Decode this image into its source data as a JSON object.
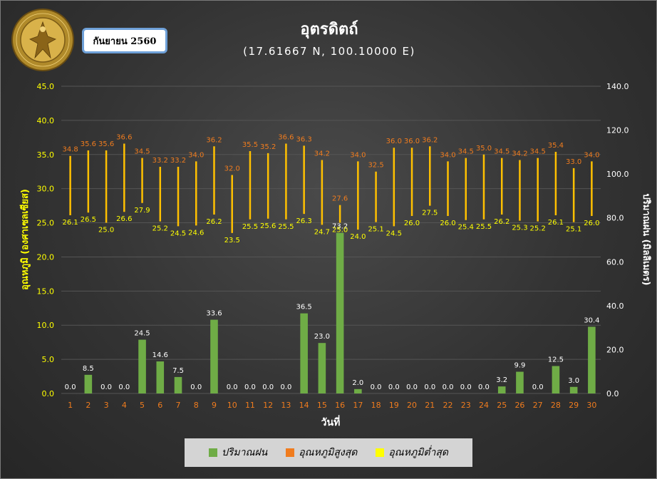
{
  "header": {
    "title": "อุตรดิตถ์",
    "subtitle": "(17.61667 N, 100.10000 E)",
    "month": "กันยายน 2560",
    "logo_text": "กรมอุตุนิยมวิทยา METEOROLOGICAL DEPARTMENT"
  },
  "colors": {
    "rain": "#6fac46",
    "tmax": "#f07c1e",
    "tmin": "#ffff00",
    "range_line": "#ffc000",
    "left_axis": "#ffff00",
    "right_axis": "#ffffff",
    "x_ticks": "#f07c1e",
    "grid": "#555555"
  },
  "chart_data": {
    "type": "bar",
    "x": [
      1,
      2,
      3,
      4,
      5,
      6,
      7,
      8,
      9,
      10,
      11,
      12,
      13,
      14,
      15,
      16,
      17,
      18,
      19,
      20,
      21,
      22,
      23,
      24,
      25,
      26,
      27,
      28,
      29,
      30
    ],
    "xlabel": "วันที่",
    "ylabel_left": "อุณหภูมิ (องศาเซลเซียส)",
    "ylabel_right": "ปริมาณฝน (มิลลิเมตร)",
    "ylim_left": [
      0,
      45
    ],
    "yticks_left": [
      "0.0",
      "5.0",
      "10.0",
      "15.0",
      "20.0",
      "25.0",
      "30.0",
      "35.0",
      "40.0",
      "45.0"
    ],
    "ylim_right": [
      0,
      140
    ],
    "yticks_right": [
      "0.0",
      "20.0",
      "40.0",
      "60.0",
      "80.0",
      "100.0",
      "120.0",
      "140.0"
    ],
    "grid": true,
    "legend_position": "bottom",
    "series": [
      {
        "name": "ปริมาณฝน",
        "axis": "right",
        "type": "bar",
        "values": [
          0.0,
          8.5,
          0.0,
          0.0,
          24.5,
          14.6,
          7.5,
          0.0,
          33.6,
          0.0,
          0.0,
          0.0,
          0.0,
          36.5,
          23.0,
          73.2,
          2.0,
          0.0,
          0.0,
          0.0,
          0.0,
          0.0,
          0.0,
          0.0,
          3.2,
          9.9,
          0.0,
          12.5,
          3.0,
          30.4
        ]
      },
      {
        "name": "อุณหภูมิสูงสุด",
        "axis": "left",
        "type": "range-top",
        "values": [
          34.8,
          35.6,
          35.6,
          36.6,
          34.5,
          33.2,
          33.2,
          34.0,
          36.2,
          32.0,
          35.5,
          35.2,
          36.6,
          36.3,
          34.2,
          27.6,
          34.0,
          32.5,
          36.0,
          36.0,
          36.2,
          34.0,
          34.5,
          35.0,
          34.5,
          34.2,
          34.5,
          35.4,
          33.0,
          34.0
        ]
      },
      {
        "name": "อุณหภูมิต่ำสุด",
        "axis": "left",
        "type": "range-bottom",
        "values": [
          26.1,
          26.5,
          25.0,
          26.6,
          27.9,
          25.2,
          24.5,
          24.6,
          26.2,
          23.5,
          25.5,
          25.6,
          25.5,
          26.3,
          24.7,
          25.0,
          24.0,
          25.1,
          24.5,
          26.0,
          27.5,
          26.0,
          25.4,
          25.5,
          26.2,
          25.3,
          25.2,
          26.1,
          25.1,
          26.0
        ]
      }
    ]
  }
}
